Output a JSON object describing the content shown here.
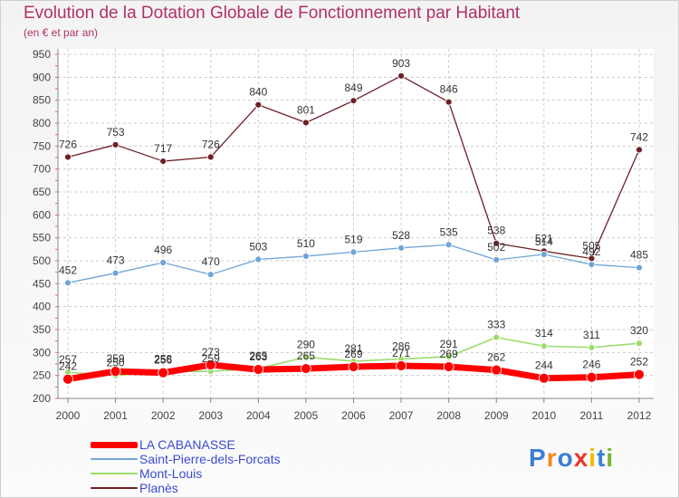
{
  "header": {
    "title": "Evolution de la Dotation Globale de Fonctionnement par Habitant",
    "subtitle": "(en € et par an)"
  },
  "logo": {
    "letters": [
      "P",
      "r",
      "o",
      "x",
      "i",
      "t",
      "i"
    ],
    "colors": [
      "#3a7fd5",
      "#f28a1e",
      "#3a7fd5",
      "#e23a2c",
      "#f5b800",
      "#3a7fd5",
      "#72b62b"
    ]
  },
  "chart_data": {
    "type": "line",
    "x": [
      "2000",
      "2001",
      "2002",
      "2003",
      "2004",
      "2005",
      "2006",
      "2007",
      "2008",
      "2009",
      "2010",
      "2011",
      "2012"
    ],
    "ylim": [
      200,
      950
    ],
    "yticks": [
      "200",
      "250",
      "300",
      "350",
      "400",
      "450",
      "500",
      "550",
      "600",
      "650",
      "700",
      "750",
      "800",
      "850",
      "900",
      "950"
    ],
    "grid": true,
    "legend_position": "bottom-left",
    "series": [
      {
        "name": "Planès",
        "color": "#6e1f24",
        "values": [
          726,
          753,
          717,
          726,
          840,
          801,
          849,
          903,
          846,
          538,
          521,
          505,
          742
        ]
      },
      {
        "name": "Saint-Pierre-dels-Forcats",
        "color": "#6fa5d6",
        "values": [
          452,
          473,
          496,
          470,
          503,
          510,
          519,
          528,
          535,
          502,
          514,
          492,
          485
        ]
      },
      {
        "name": "Mont-Louis",
        "color": "#9bdc6c",
        "values": [
          257,
          250,
          258,
          259,
          265,
          290,
          281,
          286,
          291,
          333,
          314,
          311,
          320
        ]
      },
      {
        "name": "LA CABANASSE",
        "color": "#ff0000",
        "values": [
          242,
          259,
          256,
          273,
          263,
          265,
          269,
          271,
          269,
          262,
          244,
          246,
          252
        ]
      }
    ],
    "legend_order": [
      "LA CABANASSE",
      "Saint-Pierre-dels-Forcats",
      "Mont-Louis",
      "Planès"
    ]
  }
}
